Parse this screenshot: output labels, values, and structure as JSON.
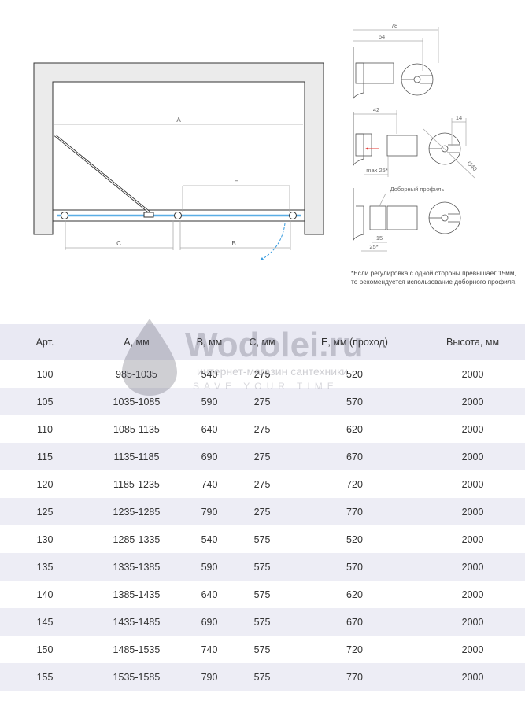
{
  "plan": {
    "labels": {
      "a": "A",
      "b": "B",
      "c": "C",
      "e": "E"
    },
    "glass_color": "#5aaee6",
    "swing_color": "#3a9de0"
  },
  "profiles": {
    "dims": {
      "d78": "78",
      "d64": "64",
      "d42": "42",
      "d14": "14",
      "max25": "max 25*",
      "dia40": "Ø40",
      "d15": "15",
      "d25": "25*"
    },
    "extra_profile_label": "Доборный профиль",
    "arrow_color": "#e53935"
  },
  "note": {
    "line1": "*Если регулировка с одной стороны превышает 15мм,",
    "line2": "то рекомендуется использование доборного профиля."
  },
  "watermark": {
    "brand": "Wodolei.ru",
    "tagline": "интернет-магазин сантехники",
    "slogan": "SAVE YOUR TIME"
  },
  "table": {
    "headers": [
      "Арт.",
      "A, мм",
      "B, мм",
      "C, мм",
      "E, мм (проход)",
      "Высота, мм"
    ],
    "rows": [
      [
        "100",
        "985-1035",
        "540",
        "275",
        "520",
        "2000"
      ],
      [
        "105",
        "1035-1085",
        "590",
        "275",
        "570",
        "2000"
      ],
      [
        "110",
        "1085-1135",
        "640",
        "275",
        "620",
        "2000"
      ],
      [
        "115",
        "1135-1185",
        "690",
        "275",
        "670",
        "2000"
      ],
      [
        "120",
        "1185-1235",
        "740",
        "275",
        "720",
        "2000"
      ],
      [
        "125",
        "1235-1285",
        "790",
        "275",
        "770",
        "2000"
      ],
      [
        "130",
        "1285-1335",
        "540",
        "575",
        "520",
        "2000"
      ],
      [
        "135",
        "1335-1385",
        "590",
        "575",
        "570",
        "2000"
      ],
      [
        "140",
        "1385-1435",
        "640",
        "575",
        "620",
        "2000"
      ],
      [
        "145",
        "1435-1485",
        "690",
        "575",
        "670",
        "2000"
      ],
      [
        "150",
        "1485-1535",
        "740",
        "575",
        "720",
        "2000"
      ],
      [
        "155",
        "1535-1585",
        "790",
        "575",
        "770",
        "2000"
      ]
    ]
  }
}
